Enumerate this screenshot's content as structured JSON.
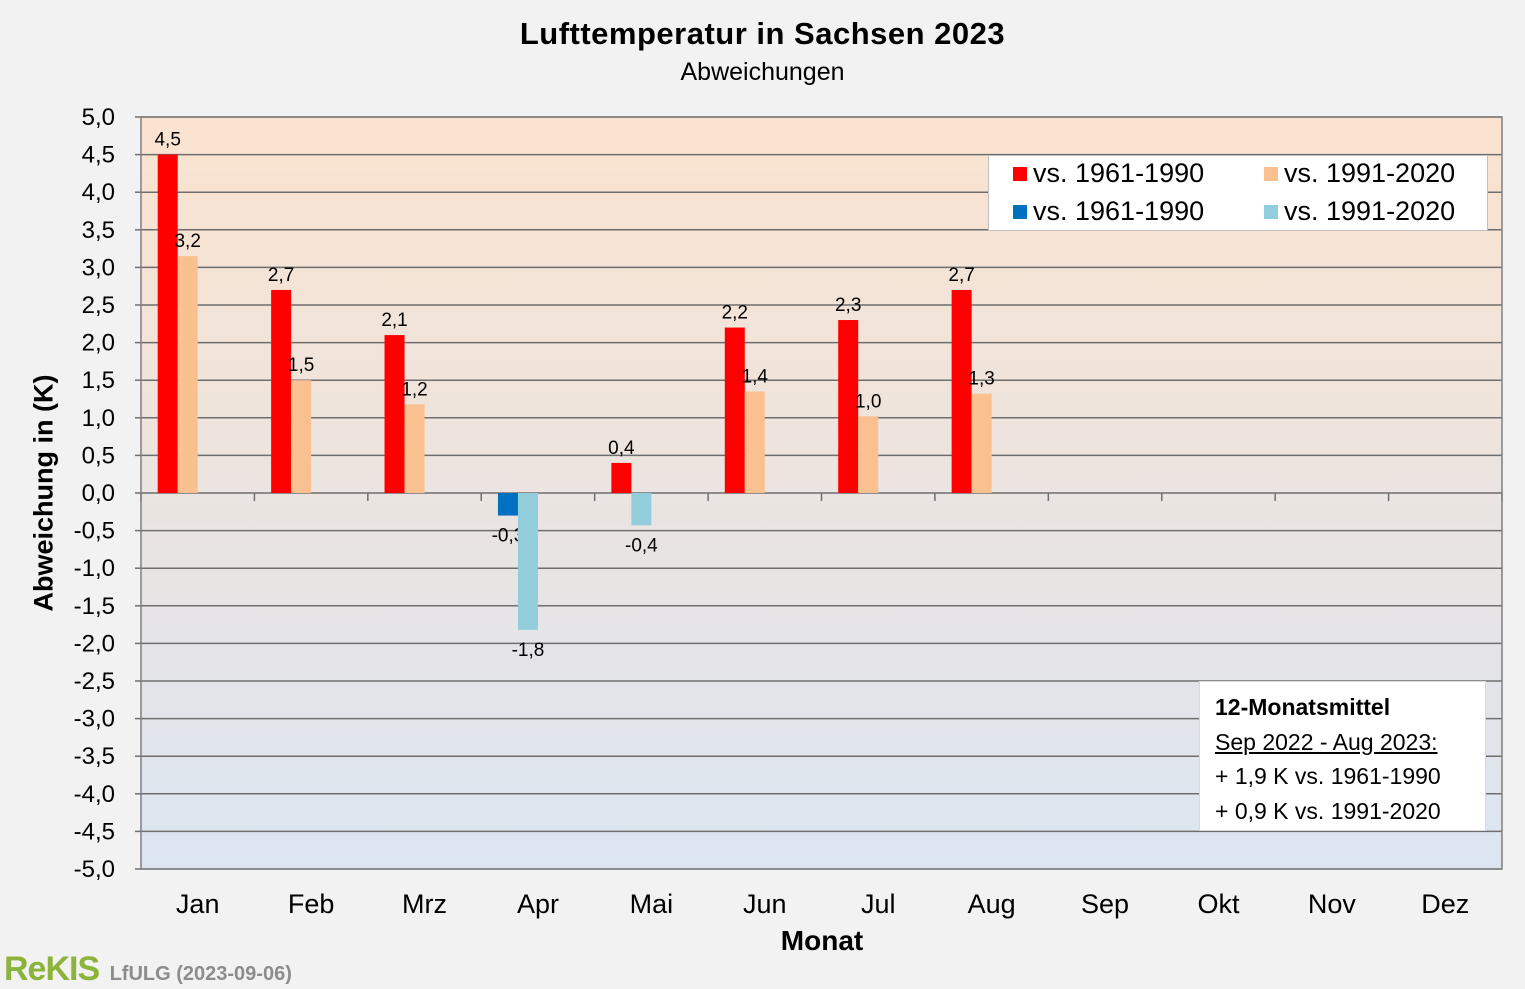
{
  "colors": {
    "red": "#ff0000",
    "peach": "#fac090",
    "blue": "#0070c0",
    "lightblue": "#92cddc",
    "bg_warm": "#fbe3cf",
    "bg_cool": "#dbe5f1"
  },
  "chart_data": {
    "type": "bar",
    "title": "Lufttemperatur  in  Sachsen  2023",
    "subtitle": "Abweichungen",
    "xlabel": "Monat",
    "ylabel": "Abweichung in (K)",
    "ylim": [
      -5.0,
      5.0
    ],
    "ytick_step": 0.5,
    "grid": true,
    "legend_position": "top-right",
    "categories": [
      "Jan",
      "Feb",
      "Mrz",
      "Apr",
      "Mai",
      "Jun",
      "Jul",
      "Aug",
      "Sep",
      "Okt",
      "Nov",
      "Dez"
    ],
    "series": [
      {
        "name": "vs. 1961-1990",
        "colors": [
          "red",
          "blue"
        ],
        "values": [
          4.5,
          2.7,
          2.1,
          -0.3,
          0.4,
          2.2,
          2.3,
          2.7,
          null,
          null,
          null,
          null
        ],
        "labels": [
          "4,5",
          "2,7",
          "2,1",
          "-0,3",
          "0,4",
          "2,2",
          "2,3",
          "2,7",
          "",
          "",
          "",
          ""
        ]
      },
      {
        "name": "vs. 1991-2020",
        "colors": [
          "peach",
          "lightblue"
        ],
        "values": [
          3.15,
          1.5,
          1.18,
          -1.82,
          -0.43,
          1.35,
          1.02,
          1.32,
          null,
          null,
          null,
          null
        ],
        "labels": [
          "3,2",
          "1,5",
          "1,2",
          "-1,8",
          "-0,4",
          "1,4",
          "1,0",
          "1,3",
          "",
          "",
          "",
          ""
        ]
      }
    ],
    "legend": [
      {
        "label": "vs. 1961-1990",
        "color": "red"
      },
      {
        "label": "vs. 1991-2020",
        "color": "peach"
      },
      {
        "label": "vs. 1961-1990",
        "color": "blue"
      },
      {
        "label": "vs. 1991-2020",
        "color": "lightblue"
      }
    ]
  },
  "summary": {
    "heading": "12-Monatsmittel",
    "period": "Sep 2022 - Aug 2023:",
    "line1": "+ 1,9 K vs. 1961-1990",
    "line2": "+ 0,9 K vs. 1991-2020"
  },
  "footer": {
    "logo": "ReKIS",
    "credit": "LfULG (2023-09-06)"
  }
}
